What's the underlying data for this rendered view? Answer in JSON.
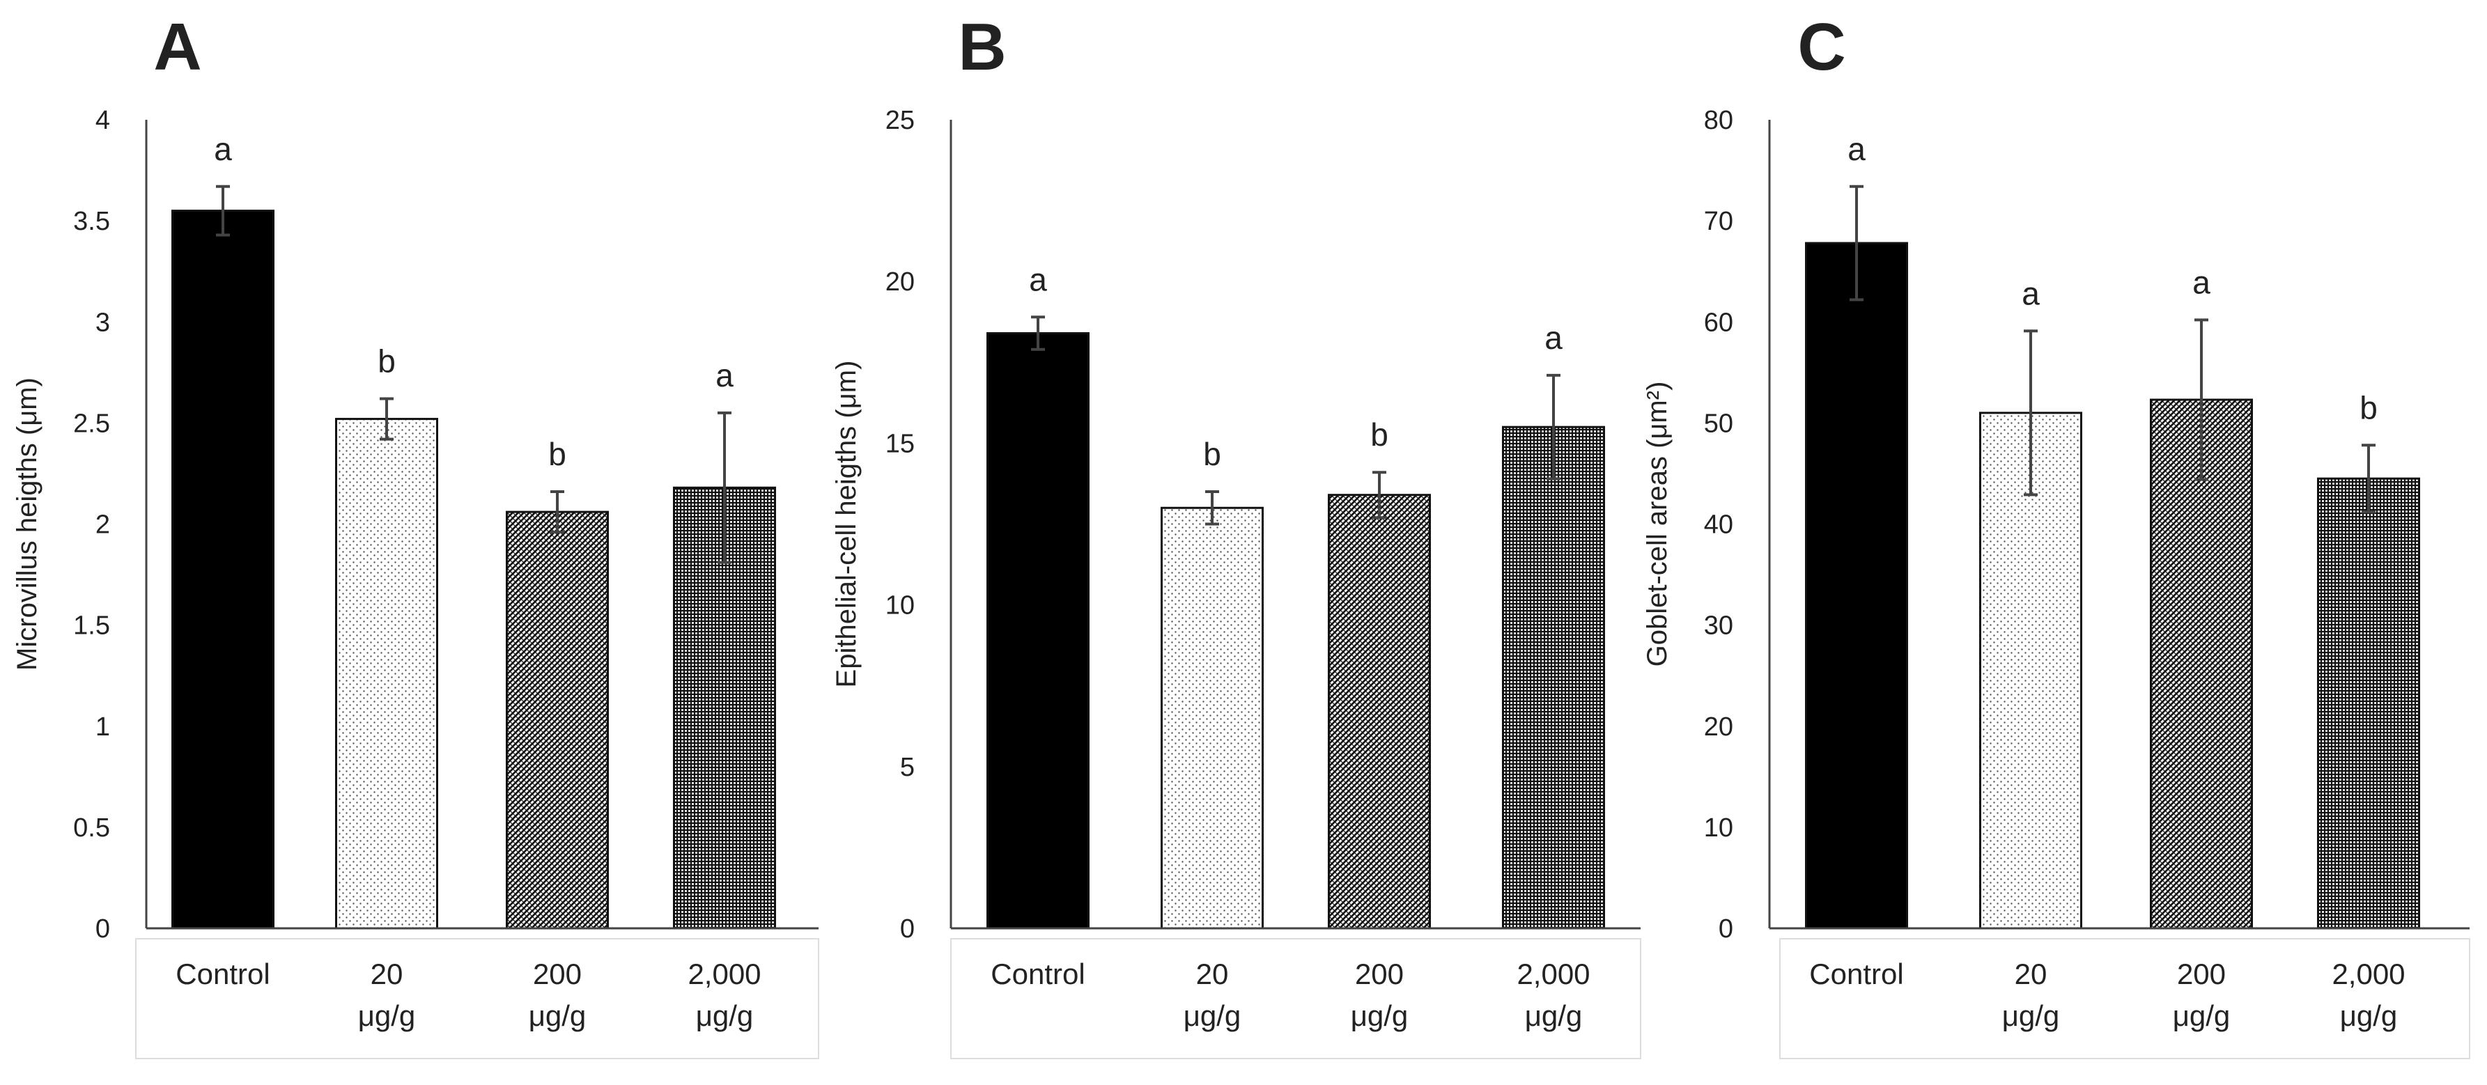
{
  "figure": {
    "panels": [
      "A",
      "B",
      "C"
    ]
  },
  "chart_data": [
    {
      "type": "bar",
      "panel": "A",
      "title": "",
      "xlabel": "",
      "ylabel": "Microvillus heigths (μm)",
      "ylim": [
        0,
        4
      ],
      "yticks": [
        "0",
        "0.5",
        "1",
        "1.5",
        "2",
        "2.5",
        "3",
        "3.5",
        "4"
      ],
      "categories": [
        [
          "Control"
        ],
        [
          "20",
          "μg/g"
        ],
        [
          "200",
          "μg/g"
        ],
        [
          "2,000",
          "μg/g"
        ]
      ],
      "values": [
        3.55,
        2.52,
        2.06,
        2.18
      ],
      "errors": [
        0.12,
        0.1,
        0.1,
        0.37
      ],
      "significance": [
        "a",
        "b",
        "b",
        "a"
      ]
    },
    {
      "type": "bar",
      "panel": "B",
      "title": "",
      "xlabel": "",
      "ylabel": "Epithelial-cell heigths (μm)",
      "ylim": [
        0,
        25
      ],
      "yticks": [
        "0",
        "5",
        "10",
        "15",
        "20",
        "25"
      ],
      "categories": [
        [
          "Control"
        ],
        [
          "20",
          "μg/g"
        ],
        [
          "200",
          "μg/g"
        ],
        [
          "2,000",
          "μg/g"
        ]
      ],
      "values": [
        18.4,
        13.0,
        13.4,
        15.5
      ],
      "errors": [
        0.5,
        0.5,
        0.7,
        1.6
      ],
      "significance": [
        "a",
        "b",
        "b",
        "a"
      ]
    },
    {
      "type": "bar",
      "panel": "C",
      "title": "",
      "xlabel": "",
      "ylabel": "Goblet-cell areas (μm²)",
      "ylim": [
        0,
        80
      ],
      "yticks": [
        "0",
        "10",
        "20",
        "30",
        "40",
        "50",
        "60",
        "70",
        "80"
      ],
      "categories": [
        [
          "Control"
        ],
        [
          "20",
          "μg/g"
        ],
        [
          "200",
          "μg/g"
        ],
        [
          "2,000",
          "μg/g"
        ]
      ],
      "values": [
        67.8,
        51.0,
        52.3,
        44.5
      ],
      "errors": [
        5.6,
        8.1,
        7.9,
        3.3
      ],
      "significance": [
        "a",
        "a",
        "a",
        "b"
      ]
    }
  ],
  "colors": {
    "control_fill": "#000000",
    "pattern_ink": "#111111",
    "axis": "#444444",
    "error_bar": "#444444",
    "category_box": "#dddddd"
  },
  "patterns": [
    "solid",
    "light-dots",
    "dense-diagonal",
    "grid-check"
  ]
}
